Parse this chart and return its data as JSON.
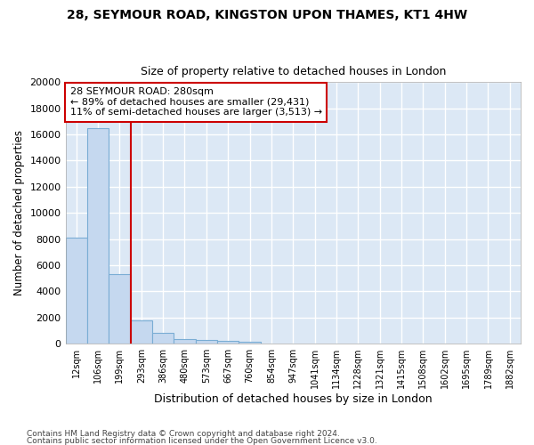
{
  "title_line1": "28, SEYMOUR ROAD, KINGSTON UPON THAMES, KT1 4HW",
  "title_line2": "Size of property relative to detached houses in London",
  "xlabel": "Distribution of detached houses by size in London",
  "ylabel": "Number of detached properties",
  "bar_color": "#c5d8ef",
  "bar_edge_color": "#7aadd4",
  "bg_color": "#dce8f5",
  "grid_color": "#ffffff",
  "annotation_text": "28 SEYMOUR ROAD: 280sqm\n← 89% of detached houses are smaller (29,431)\n11% of semi-detached houses are larger (3,513) →",
  "vline_color": "#cc0000",
  "footer_line1": "Contains HM Land Registry data © Crown copyright and database right 2024.",
  "footer_line2": "Contains public sector information licensed under the Open Government Licence v3.0.",
  "categories": [
    "12sqm",
    "106sqm",
    "199sqm",
    "293sqm",
    "386sqm",
    "480sqm",
    "573sqm",
    "667sqm",
    "760sqm",
    "854sqm",
    "947sqm",
    "1041sqm",
    "1134sqm",
    "1228sqm",
    "1321sqm",
    "1415sqm",
    "1508sqm",
    "1602sqm",
    "1695sqm",
    "1789sqm",
    "1882sqm"
  ],
  "values": [
    8100,
    16500,
    5300,
    1800,
    800,
    350,
    280,
    210,
    170,
    0,
    0,
    0,
    0,
    0,
    0,
    0,
    0,
    0,
    0,
    0,
    0
  ],
  "ylim": [
    0,
    20000
  ],
  "yticks": [
    0,
    2000,
    4000,
    6000,
    8000,
    10000,
    12000,
    14000,
    16000,
    18000,
    20000
  ],
  "vline_bar_index": 2.5
}
